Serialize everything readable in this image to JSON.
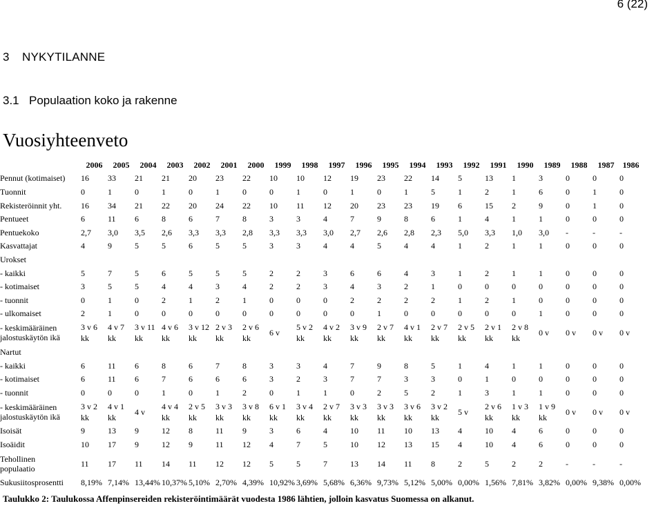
{
  "page_number": "6 (22)",
  "section": {
    "number": "3",
    "title": "NYKYTILANNE"
  },
  "subsection": {
    "number": "3.1",
    "title": "Populaation koko ja rakenne"
  },
  "title": "Vuosiyhteenveto",
  "years": [
    "2006",
    "2005",
    "2004",
    "2003",
    "2002",
    "2001",
    "2000",
    "1999",
    "1998",
    "1997",
    "1996",
    "1995",
    "1994",
    "1993",
    "1992",
    "1991",
    "1990",
    "1989",
    "1988",
    "1987",
    "1986"
  ],
  "rows": [
    {
      "label": "Pennut (kotimaiset)",
      "values": [
        "16",
        "33",
        "21",
        "21",
        "20",
        "23",
        "22",
        "10",
        "10",
        "12",
        "19",
        "23",
        "22",
        "14",
        "5",
        "13",
        "1",
        "3",
        "0",
        "0",
        "0"
      ]
    },
    {
      "label": "Tuonnit",
      "values": [
        "0",
        "1",
        "0",
        "1",
        "0",
        "1",
        "0",
        "0",
        "1",
        "0",
        "1",
        "0",
        "1",
        "5",
        "1",
        "2",
        "1",
        "6",
        "0",
        "1",
        "0"
      ]
    },
    {
      "label": "Rekisteröinnit yht.",
      "values": [
        "16",
        "34",
        "21",
        "22",
        "20",
        "24",
        "22",
        "10",
        "11",
        "12",
        "20",
        "23",
        "23",
        "19",
        "6",
        "15",
        "2",
        "9",
        "0",
        "1",
        "0"
      ]
    },
    {
      "label": "Pentueet",
      "values": [
        "6",
        "11",
        "6",
        "8",
        "6",
        "7",
        "8",
        "3",
        "3",
        "4",
        "7",
        "9",
        "8",
        "6",
        "1",
        "4",
        "1",
        "1",
        "0",
        "0",
        "0"
      ]
    },
    {
      "label": "Pentuekoko",
      "values": [
        "2,7",
        "3,0",
        "3,5",
        "2,6",
        "3,3",
        "3,3",
        "2,8",
        "3,3",
        "3,3",
        "3,0",
        "2,7",
        "2,6",
        "2,8",
        "2,3",
        "5,0",
        "3,3",
        "1,0",
        "3,0",
        "-",
        "-",
        "-"
      ]
    },
    {
      "label": "Kasvattajat",
      "values": [
        "4",
        "9",
        "5",
        "5",
        "6",
        "5",
        "5",
        "3",
        "3",
        "4",
        "4",
        "5",
        "4",
        "4",
        "1",
        "2",
        "1",
        "1",
        "0",
        "0",
        "0"
      ]
    },
    {
      "label": "Urokset",
      "values": []
    },
    {
      "label": "- kaikki",
      "values": [
        "5",
        "7",
        "5",
        "6",
        "5",
        "5",
        "5",
        "2",
        "2",
        "3",
        "6",
        "6",
        "4",
        "3",
        "1",
        "2",
        "1",
        "1",
        "0",
        "0",
        "0"
      ]
    },
    {
      "label": "- kotimaiset",
      "values": [
        "3",
        "5",
        "5",
        "4",
        "4",
        "3",
        "4",
        "2",
        "2",
        "3",
        "4",
        "3",
        "2",
        "1",
        "0",
        "0",
        "0",
        "0",
        "0",
        "0",
        "0"
      ]
    },
    {
      "label": "- tuonnit",
      "values": [
        "0",
        "1",
        "0",
        "2",
        "1",
        "2",
        "1",
        "0",
        "0",
        "0",
        "2",
        "2",
        "2",
        "2",
        "1",
        "2",
        "1",
        "0",
        "0",
        "0",
        "0"
      ]
    },
    {
      "label": "- ulkomaiset",
      "values": [
        "2",
        "1",
        "0",
        "0",
        "0",
        "0",
        "0",
        "0",
        "0",
        "0",
        "0",
        "1",
        "0",
        "0",
        "0",
        "0",
        "0",
        "1",
        "0",
        "0",
        "0"
      ]
    },
    {
      "label": "- keskimääräinen\njalostuskäytön ikä",
      "two": true,
      "values": [
        "3 v 6\nkk",
        "4 v 7\nkk",
        "3 v 11\nkk",
        "4 v 6\nkk",
        "3 v 12\nkk",
        "2 v 3\nkk",
        "2 v 6\nkk",
        "6 v",
        "5 v 2\nkk",
        "4 v 2\nkk",
        "3 v 9\nkk",
        "2 v 7\nkk",
        "4 v 1\nkk",
        "2 v 7\nkk",
        "2 v 5\nkk",
        "2 v 1\nkk",
        "2 v 8\nkk",
        "0 v",
        "0 v",
        "0 v",
        "0 v"
      ]
    },
    {
      "label": "Nartut",
      "values": []
    },
    {
      "label": "- kaikki",
      "values": [
        "6",
        "11",
        "6",
        "8",
        "6",
        "7",
        "8",
        "3",
        "3",
        "4",
        "7",
        "9",
        "8",
        "5",
        "1",
        "4",
        "1",
        "1",
        "0",
        "0",
        "0"
      ]
    },
    {
      "label": "- kotimaiset",
      "values": [
        "6",
        "11",
        "6",
        "7",
        "6",
        "6",
        "6",
        "3",
        "2",
        "3",
        "7",
        "7",
        "3",
        "3",
        "0",
        "1",
        "0",
        "0",
        "0",
        "0",
        "0"
      ]
    },
    {
      "label": "- tuonnit",
      "values": [
        "0",
        "0",
        "0",
        "1",
        "0",
        "1",
        "2",
        "0",
        "1",
        "1",
        "0",
        "2",
        "5",
        "2",
        "1",
        "3",
        "1",
        "1",
        "0",
        "0",
        "0"
      ]
    },
    {
      "label": "- keskimääräinen\njalostuskäytön ikä",
      "two": true,
      "values": [
        "3 v 2\nkk",
        "4 v 1\nkk",
        "4 v",
        "4 v 4\nkk",
        "2 v 5\nkk",
        "3 v 3\nkk",
        "3 v 8\nkk",
        "6 v 1\nkk",
        "3 v 4\nkk",
        "2 v 7\nkk",
        "3 v 3\nkk",
        "3 v 3\nkk",
        "3 v 6\nkk",
        "3 v 2\nkk",
        "5 v",
        "2 v 6\nkk",
        "1 v 3\nkk",
        "1 v 9\nkk",
        "0 v",
        "0 v",
        "0 v"
      ]
    },
    {
      "label": "Isoisät",
      "values": [
        "9",
        "13",
        "9",
        "12",
        "8",
        "11",
        "9",
        "3",
        "6",
        "4",
        "10",
        "11",
        "10",
        "13",
        "4",
        "10",
        "4",
        "6",
        "0",
        "0",
        "0"
      ]
    },
    {
      "label": "Isoäidit",
      "values": [
        "10",
        "17",
        "9",
        "12",
        "9",
        "11",
        "12",
        "4",
        "7",
        "5",
        "10",
        "12",
        "13",
        "15",
        "4",
        "10",
        "4",
        "6",
        "0",
        "0",
        "0"
      ]
    },
    {
      "label": "Tehollinen\npopulaatio",
      "two": true,
      "values": [
        "11",
        "17",
        "11",
        "14",
        "11",
        "12",
        "12",
        "5",
        "5",
        "7",
        "13",
        "14",
        "11",
        "8",
        "2",
        "5",
        "2",
        "2",
        "-",
        "-",
        "-"
      ]
    },
    {
      "label": "Sukusiitosprosentti",
      "values": [
        "8,19%",
        "7,14%",
        "13,44%",
        "10,37%",
        "5,10%",
        "2,70%",
        "4,39%",
        "10,92%",
        "3,69%",
        "5,68%",
        "6,36%",
        "9,73%",
        "5,12%",
        "5,00%",
        "0,00%",
        "1,56%",
        "7,81%",
        "3,82%",
        "0,00%",
        "9,38%",
        "0,00%"
      ]
    }
  ],
  "caption": "Taulukko 2: Taulukossa Affenpinsereiden rekisteröintimäärät vuodesta 1986 lähtien, jolloin kasvatus Suomessa on alkanut."
}
